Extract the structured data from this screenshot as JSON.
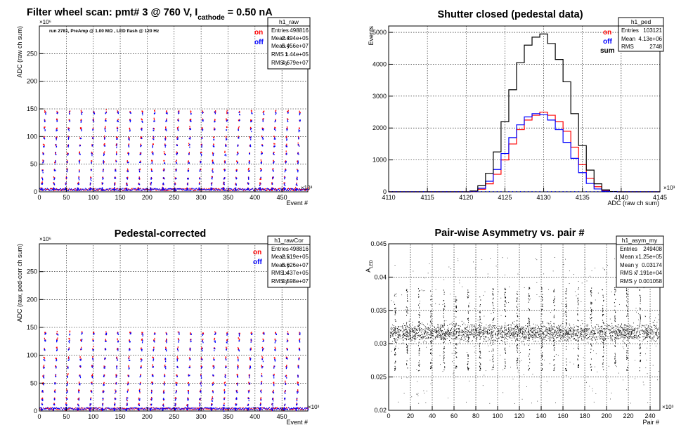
{
  "panels": [
    {
      "id": "raw",
      "title_parts": {
        "pre": "Filter wheel scan: pmt#   3 @   760 V, I",
        "sub": "cathode",
        "post": "   = 0.50 nA"
      },
      "subtitle": "run 2781, PreAmp @ 1.00 MΩ , LED flash @  120 Hz",
      "stats": {
        "name": "h1_raw",
        "rows": [
          [
            "Entries",
            "498816"
          ],
          [
            "Mean x",
            "2.494e+05"
          ],
          [
            "Mean y",
            "5.456e+07"
          ],
          [
            "RMS x",
            "1.44e+05"
          ],
          [
            "RMS y",
            "4.679e+07"
          ]
        ]
      },
      "legend": [
        {
          "label": "on",
          "color": "#ff0000"
        },
        {
          "label": "off",
          "color": "#0000ff"
        }
      ],
      "xlabel": "Event #",
      "ylabel": "ADC (raw ch sum)",
      "x_multiplier": "×10³",
      "y_multiplier": "×10⁶",
      "xticks": [
        "0",
        "50",
        "100",
        "150",
        "200",
        "250",
        "300",
        "350",
        "400",
        "450"
      ],
      "yticks": [
        "0",
        "50",
        "100",
        "150",
        "200",
        "250"
      ]
    },
    {
      "id": "ped",
      "title": "Shutter closed (pedestal data)",
      "stats": {
        "name": "h1_ped",
        "rows": [
          [
            "Entries",
            "103121"
          ],
          [
            "Mean",
            "4.13e+06"
          ],
          [
            "RMS",
            "2748"
          ]
        ]
      },
      "legend": [
        {
          "label": "on",
          "color": "#ff0000"
        },
        {
          "label": "off",
          "color": "#0000ff"
        },
        {
          "label": "sum",
          "color": "#000000"
        }
      ],
      "xlabel": "ADC (raw ch sum)",
      "ylabel": "Events",
      "x_multiplier": "×10³",
      "xticks": [
        "4110",
        "4115",
        "4120",
        "4125",
        "4130",
        "4135",
        "4140",
        "4145"
      ],
      "yticks": [
        "0",
        "1000",
        "2000",
        "3000",
        "4000",
        "5000"
      ]
    },
    {
      "id": "cor",
      "title": "Pedestal-corrected",
      "stats": {
        "name": "h1_rawCor",
        "rows": [
          [
            "Entries",
            "498816"
          ],
          [
            "Mean x",
            "2.519e+05"
          ],
          [
            "Mean y",
            "5.626e+07"
          ],
          [
            "RMS x",
            "1.437e+05"
          ],
          [
            "RMS y",
            "4.598e+07"
          ]
        ]
      },
      "legend": [
        {
          "label": "on",
          "color": "#ff0000"
        },
        {
          "label": "off",
          "color": "#0000ff"
        }
      ],
      "xlabel": "Event #",
      "ylabel": "ADC (raw, ped-corr ch sum)",
      "x_multiplier": "×10³",
      "y_multiplier": "×10⁶",
      "xticks": [
        "0",
        "50",
        "100",
        "150",
        "200",
        "250",
        "300",
        "350",
        "400",
        "450"
      ],
      "yticks": [
        "0",
        "50",
        "100",
        "150",
        "200",
        "250"
      ]
    },
    {
      "id": "asym",
      "title": "Pair-wise Asymmetry vs. pair #",
      "stats": {
        "name": "h1_asym_my",
        "rows": [
          [
            "Entries",
            "249408"
          ],
          [
            "Mean x",
            "1.25e+05"
          ],
          [
            "Mean y",
            "0.03174"
          ],
          [
            "RMS x",
            "7.191e+04"
          ],
          [
            "RMS y",
            "0.001058"
          ]
        ]
      },
      "xlabel": "Pair #",
      "ylabel_main": "A",
      "ylabel_sub": "LED",
      "x_multiplier": "×10³",
      "xticks": [
        "0",
        "20",
        "40",
        "60",
        "80",
        "100",
        "120",
        "140",
        "160",
        "180",
        "200",
        "220",
        "240"
      ],
      "yticks": [
        "0.02",
        "0.025",
        "0.03",
        "0.035",
        "0.04",
        "0.045"
      ]
    }
  ],
  "chart_data": [
    {
      "type": "scatter",
      "title": "Filter wheel scan: pmt#   3 @   760 V, I cathode = 0.50 nA",
      "xlabel": "Event #",
      "ylabel": "ADC (raw ch sum)",
      "xlim": [
        0,
        498
      ],
      "ylim": [
        0,
        300
      ],
      "x_units": "x10^3 events",
      "y_units": "x10^6 ADC",
      "grid": true,
      "series": [
        {
          "name": "on",
          "color": "#ff0000",
          "levels": [
            5,
            15,
            25,
            40,
            55,
            70,
            85,
            98,
            115,
            130,
            145
          ]
        },
        {
          "name": "off",
          "color": "#0000ff",
          "levels": [
            5,
            14,
            24,
            38,
            53,
            68,
            83,
            96,
            112,
            128,
            142
          ]
        }
      ],
      "scan_period": 22.5,
      "stats": {
        "Entries": 498816,
        "Mean x": 249400,
        "Mean y": 54560000,
        "RMS x": 144000,
        "RMS y": 46790000
      }
    },
    {
      "type": "line",
      "title": "Shutter closed (pedestal data)",
      "xlabel": "ADC (raw ch sum)",
      "ylabel": "Events",
      "xlim": [
        4110,
        4145
      ],
      "ylim": [
        0,
        5200
      ],
      "x_units": "x10^3 ADC",
      "grid": true,
      "legend_position": "top-right",
      "x": [
        4121,
        4122,
        4123,
        4124,
        4125,
        4126,
        4127,
        4128,
        4129,
        4130,
        4131,
        4132,
        4133,
        4134,
        4135,
        4136,
        4137,
        4138,
        4139
      ],
      "series": [
        {
          "name": "on",
          "color": "#ff0000",
          "values": [
            10,
            80,
            250,
            550,
            1000,
            1500,
            1950,
            2250,
            2400,
            2500,
            2400,
            2200,
            1900,
            1400,
            850,
            420,
            160,
            40,
            5
          ]
        },
        {
          "name": "off",
          "color": "#0000ff",
          "values": [
            15,
            110,
            330,
            700,
            1200,
            1700,
            2100,
            2350,
            2450,
            2420,
            2250,
            1950,
            1550,
            1050,
            600,
            260,
            90,
            20,
            3
          ]
        },
        {
          "name": "sum",
          "color": "#000000",
          "values": [
            25,
            190,
            580,
            1250,
            2200,
            3200,
            4050,
            4600,
            4850,
            4950,
            4650,
            4150,
            3450,
            2450,
            1450,
            680,
            250,
            60,
            8
          ]
        }
      ],
      "stats": {
        "Entries": 103121,
        "Mean": 4130000,
        "RMS": 2748
      }
    },
    {
      "type": "scatter",
      "title": "Pedestal-corrected",
      "xlabel": "Event #",
      "ylabel": "ADC (raw, ped-corr ch sum)",
      "xlim": [
        0,
        498
      ],
      "ylim": [
        0,
        300
      ],
      "x_units": "x10^3 events",
      "y_units": "x10^6 ADC",
      "grid": true,
      "series": [
        {
          "name": "on",
          "color": "#ff0000",
          "levels": [
            3,
            12,
            22,
            36,
            50,
            64,
            80,
            95,
            112,
            128,
            140
          ]
        },
        {
          "name": "off",
          "color": "#0000ff",
          "levels": [
            3,
            11,
            21,
            34,
            48,
            62,
            78,
            92,
            110,
            125,
            138
          ]
        }
      ],
      "scan_period": 22.5,
      "stats": {
        "Entries": 498816,
        "Mean x": 251900,
        "Mean y": 56260000,
        "RMS x": 143700,
        "RMS y": 45980000
      }
    },
    {
      "type": "scatter",
      "title": "Pair-wise Asymmetry vs. pair #",
      "xlabel": "Pair #",
      "ylabel": "A LED",
      "xlim": [
        0,
        249
      ],
      "ylim": [
        0.02,
        0.045
      ],
      "x_units": "x10^3 pairs",
      "grid": true,
      "series": [
        {
          "name": "",
          "color": "#000000",
          "band_center": 0.0317,
          "band_halfwidth": 0.0009
        }
      ],
      "dip_positions": [
        5,
        16,
        27,
        38,
        50,
        61,
        72,
        83,
        95,
        106,
        117,
        128,
        140,
        151,
        162,
        173,
        185,
        196,
        207,
        218,
        230
      ],
      "stats": {
        "Entries": 249408,
        "Mean x": 125000,
        "Mean y": 0.03174,
        "RMS x": 71910,
        "RMS y": 0.001058
      }
    }
  ]
}
